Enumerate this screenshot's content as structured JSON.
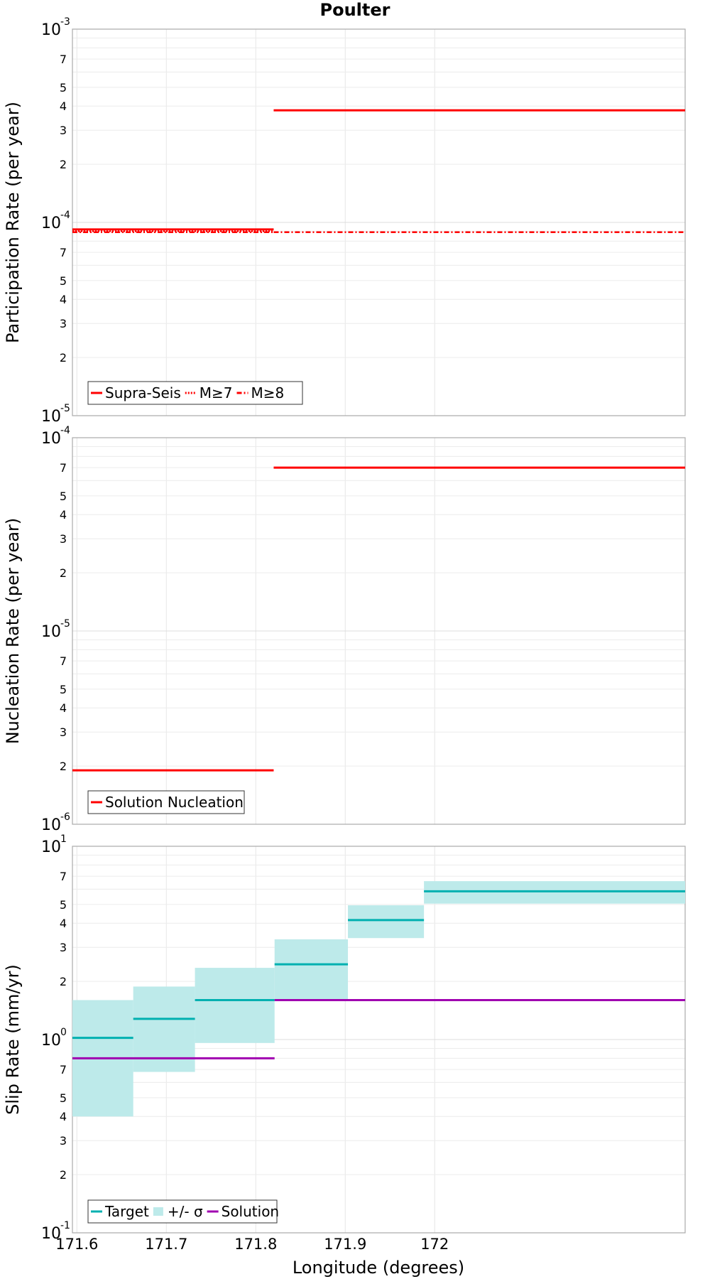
{
  "figure": {
    "title": "Poulter",
    "xlabel": "Longitude (degrees)"
  },
  "chart_data": [
    {
      "type": "line",
      "step": true,
      "scale": "log",
      "ylabel": "Participation Rate (per year)",
      "xlim": [
        171.595,
        172.28
      ],
      "ylim": [
        1e-05,
        0.001
      ],
      "x_ticks": [
        171.6,
        171.7,
        171.8,
        171.9,
        172
      ],
      "x_tick_labels": [
        "171.6",
        "171.7",
        "171.8",
        "171.9",
        "172"
      ],
      "grid": true,
      "legend_placement": "bottom-left",
      "series": [
        {
          "name": "Supra-Seis",
          "color": "#ff0000",
          "dash": "solid",
          "segments": [
            {
              "x0": 171.595,
              "x1": 171.82,
              "y": 9.2e-05
            },
            {
              "x0": 171.82,
              "x1": 172.28,
              "y": 0.00038
            }
          ]
        },
        {
          "name": "M≥7",
          "color": "#ff0000",
          "dash": "dotted",
          "segments": [
            {
              "x0": 171.595,
              "x1": 171.82,
              "y": 9e-05
            },
            {
              "x0": 171.82,
              "x1": 172.28,
              "y": 0.00038
            }
          ]
        },
        {
          "name": "M≥8",
          "color": "#ff0000",
          "dash": "dashdot",
          "segments": [
            {
              "x0": 171.595,
              "x1": 171.82,
              "y": 8.9e-05
            },
            {
              "x0": 171.82,
              "x1": 172.28,
              "y": 8.9e-05
            }
          ]
        }
      ]
    },
    {
      "type": "line",
      "step": true,
      "scale": "log",
      "ylabel": "Nucleation Rate (per year)",
      "xlim": [
        171.595,
        172.28
      ],
      "ylim": [
        1e-06,
        0.0001
      ],
      "x_ticks": [
        171.6,
        171.7,
        171.8,
        171.9,
        172
      ],
      "x_tick_labels": [
        "171.6",
        "171.7",
        "171.8",
        "171.9",
        "172"
      ],
      "grid": true,
      "legend_placement": "bottom-left",
      "series": [
        {
          "name": "Solution Nucleation",
          "color": "#ff0000",
          "dash": "solid",
          "segments": [
            {
              "x0": 171.595,
              "x1": 171.82,
              "y": 1.9e-06
            },
            {
              "x0": 171.82,
              "x1": 172.28,
              "y": 7e-05
            }
          ]
        }
      ]
    },
    {
      "type": "line",
      "step": true,
      "scale": "log",
      "ylabel": "Slip Rate (mm/yr)",
      "xlim": [
        171.595,
        172.28
      ],
      "ylim": [
        0.1,
        10
      ],
      "x_ticks": [
        171.6,
        171.7,
        171.8,
        171.9,
        172
      ],
      "x_tick_labels": [
        "171.6",
        "171.7",
        "171.8",
        "171.9",
        "172"
      ],
      "grid": true,
      "legend_placement": "bottom-left",
      "series": [
        {
          "name": "Target",
          "color": "#00b0b0",
          "dash": "solid",
          "segments": [
            {
              "x0": 171.595,
              "x1": 171.663,
              "y": 1.02
            },
            {
              "x0": 171.663,
              "x1": 171.732,
              "y": 1.28
            },
            {
              "x0": 171.732,
              "x1": 171.821,
              "y": 1.6
            },
            {
              "x0": 171.821,
              "x1": 171.903,
              "y": 2.45
            },
            {
              "x0": 171.903,
              "x1": 171.988,
              "y": 4.15
            },
            {
              "x0": 171.988,
              "x1": 172.28,
              "y": 5.85
            }
          ]
        },
        {
          "name": "+/- σ",
          "color": "#bdeaea",
          "band": true,
          "bands": [
            {
              "x0": 171.595,
              "x1": 171.663,
              "lo": 0.4,
              "hi": 1.6
            },
            {
              "x0": 171.663,
              "x1": 171.732,
              "lo": 0.68,
              "hi": 1.88
            },
            {
              "x0": 171.732,
              "x1": 171.821,
              "lo": 0.96,
              "hi": 2.35
            },
            {
              "x0": 171.821,
              "x1": 171.903,
              "lo": 1.6,
              "hi": 3.3
            },
            {
              "x0": 171.903,
              "x1": 171.988,
              "lo": 3.35,
              "hi": 4.95
            },
            {
              "x0": 171.988,
              "x1": 172.28,
              "lo": 5.05,
              "hi": 6.6
            }
          ]
        },
        {
          "name": "Solution",
          "color": "#a000b0",
          "dash": "solid",
          "segments": [
            {
              "x0": 171.595,
              "x1": 171.821,
              "y": 0.8
            },
            {
              "x0": 171.821,
              "x1": 172.28,
              "y": 1.6
            }
          ]
        }
      ]
    }
  ]
}
